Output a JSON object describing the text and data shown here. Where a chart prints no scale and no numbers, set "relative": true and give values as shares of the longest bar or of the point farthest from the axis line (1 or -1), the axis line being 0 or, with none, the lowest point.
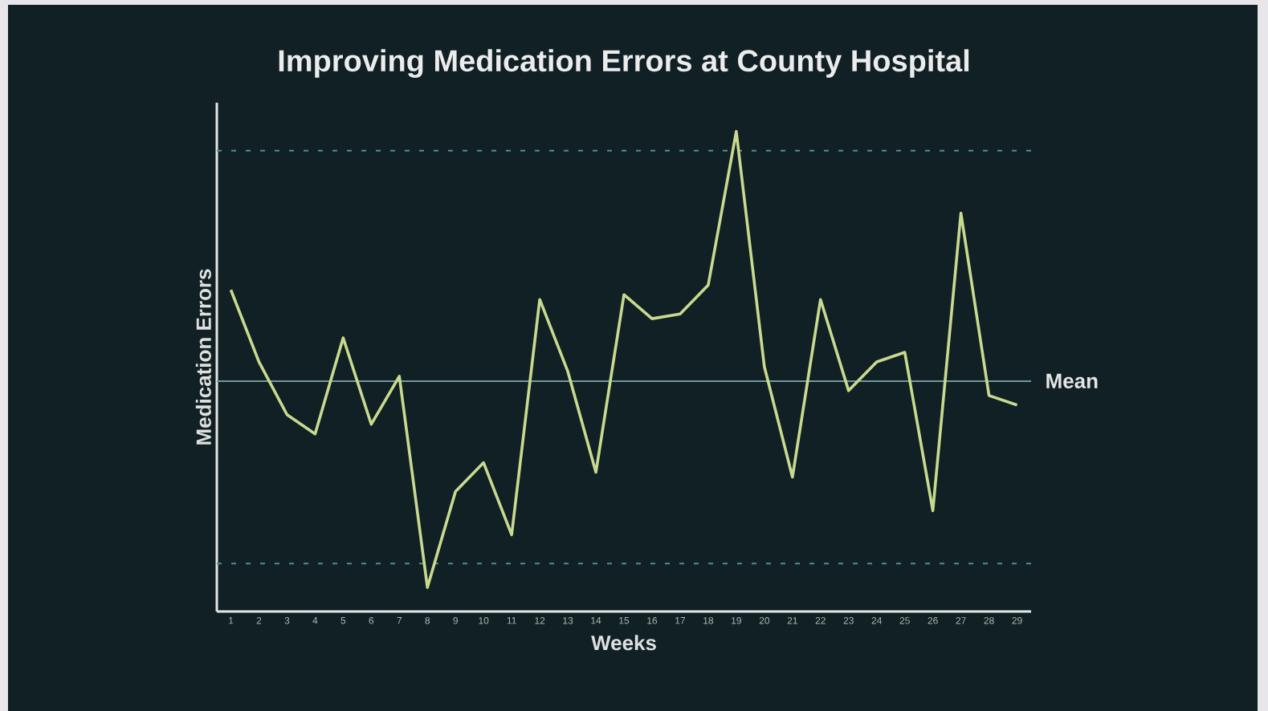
{
  "chart_data": {
    "type": "line",
    "title": "Improving Medication Errors at County Hospital",
    "xlabel": "Weeks",
    "ylabel": "Medication Errors",
    "relative": true,
    "categories": [
      "1",
      "2",
      "3",
      "4",
      "5",
      "6",
      "7",
      "8",
      "9",
      "10",
      "11",
      "12",
      "13",
      "14",
      "15",
      "16",
      "17",
      "18",
      "19",
      "20",
      "21",
      "22",
      "23",
      "24",
      "25",
      "26",
      "27",
      "28",
      "29"
    ],
    "series": [
      {
        "color": "#c9d98f",
        "values": [
          0.67,
          0.52,
          0.41,
          0.37,
          0.57,
          0.39,
          0.49,
          0.05,
          0.25,
          0.31,
          0.16,
          0.65,
          0.5,
          0.29,
          0.66,
          0.61,
          0.62,
          0.68,
          1.0,
          0.51,
          0.28,
          0.65,
          0.46,
          0.52,
          0.54,
          0.21,
          0.83,
          0.45,
          0.43
        ]
      }
    ],
    "ref_lines": [
      {
        "axis": "y",
        "value": 0.96,
        "label": null,
        "color": "#4f8f8f",
        "line_style": "dashed"
      },
      {
        "axis": "y",
        "value": 0.48,
        "label": "Mean",
        "color": "#6f9a9a",
        "line_style": "solid"
      },
      {
        "axis": "y",
        "value": 0.1,
        "label": null,
        "color": "#4f8f8f",
        "line_style": "dashed"
      }
    ],
    "marker": "none"
  }
}
